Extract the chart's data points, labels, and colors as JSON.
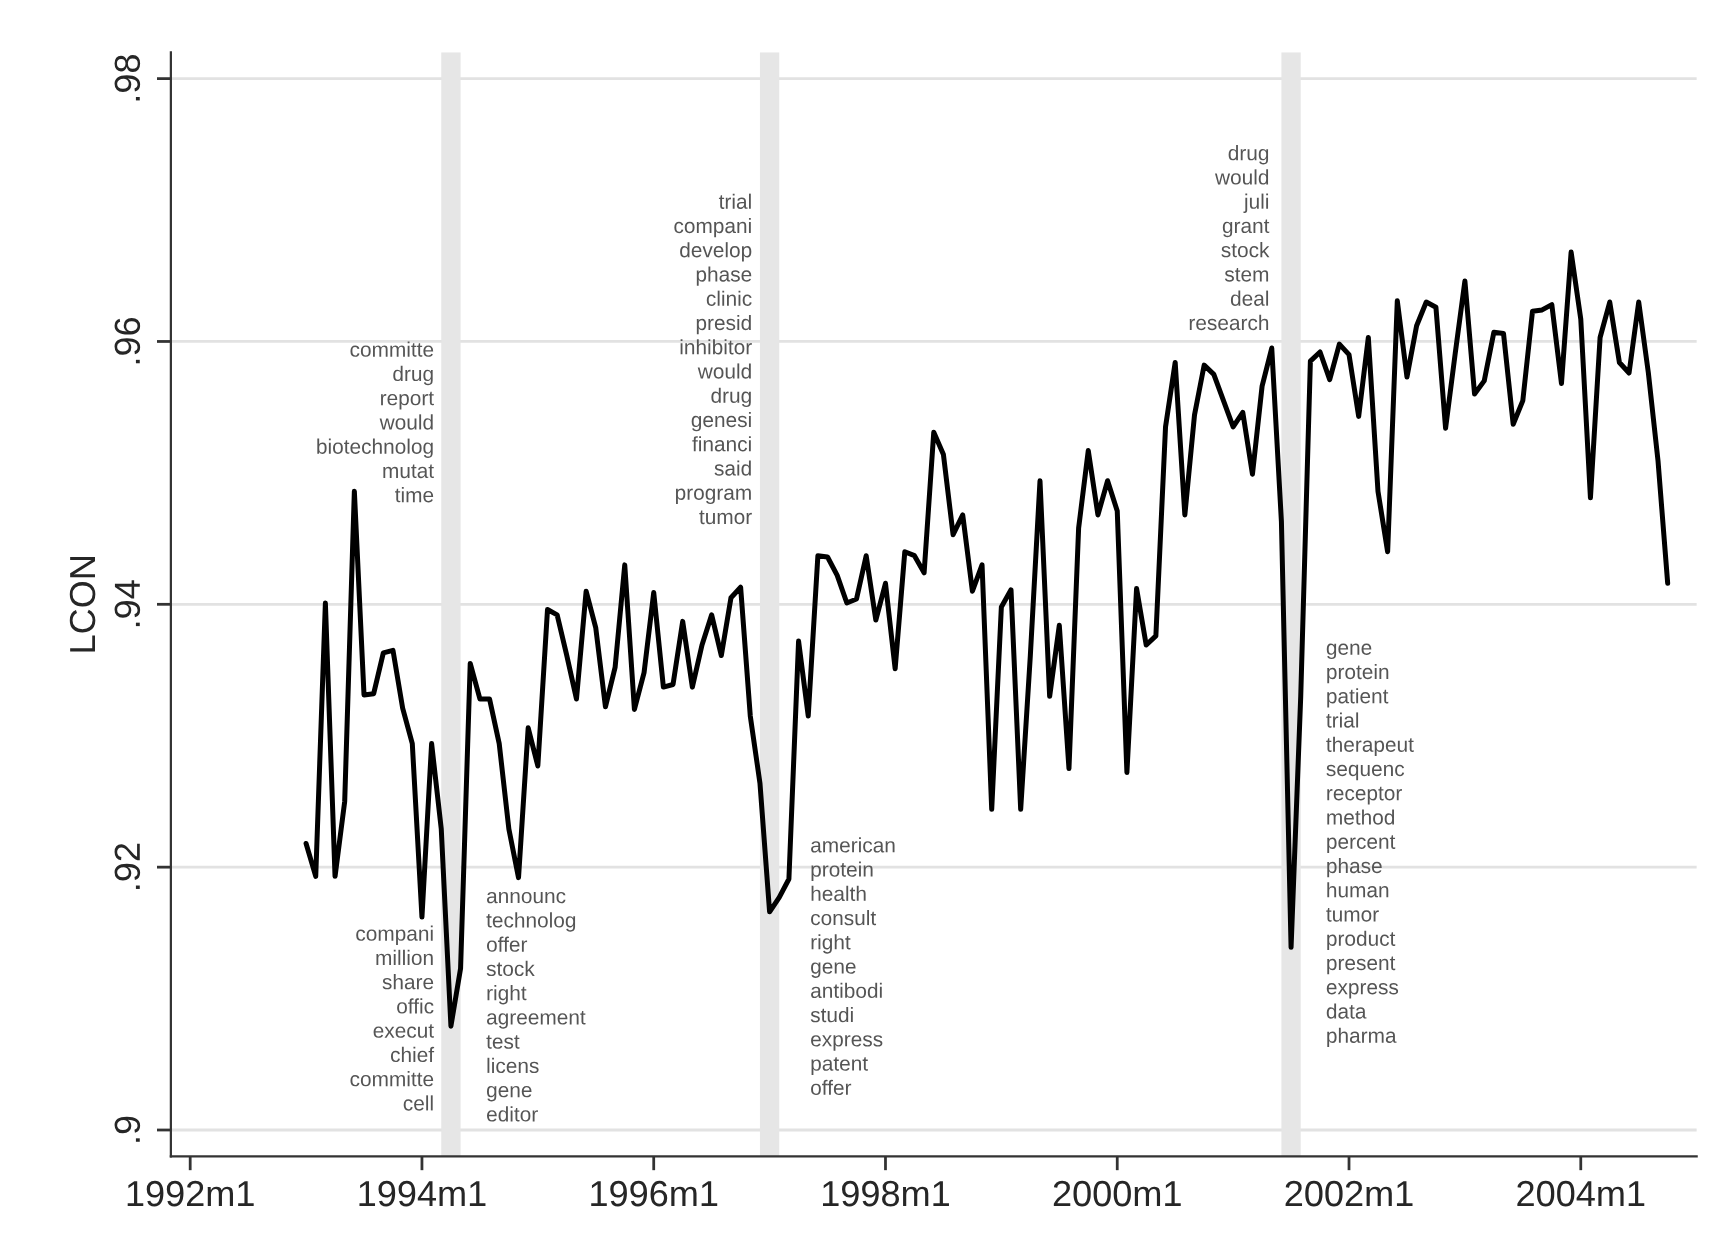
{
  "chart_data": {
    "type": "line",
    "ylabel": "LCON",
    "x": [
      "1993-01",
      "1993-02",
      "1993-03",
      "1993-04",
      "1993-05",
      "1993-06",
      "1993-07",
      "1993-08",
      "1993-09",
      "1993-10",
      "1993-11",
      "1993-12",
      "1994-01",
      "1994-02",
      "1994-03",
      "1994-04",
      "1994-05",
      "1994-06",
      "1994-07",
      "1994-08",
      "1994-09",
      "1994-10",
      "1994-11",
      "1994-12",
      "1995-01",
      "1995-02",
      "1995-03",
      "1995-04",
      "1995-05",
      "1995-06",
      "1995-07",
      "1995-08",
      "1995-09",
      "1995-10",
      "1995-11",
      "1995-12",
      "1996-01",
      "1996-02",
      "1996-03",
      "1996-04",
      "1996-05",
      "1996-06",
      "1996-07",
      "1996-08",
      "1996-09",
      "1996-10",
      "1996-11",
      "1996-12",
      "1997-01",
      "1997-02",
      "1997-03",
      "1997-04",
      "1997-05",
      "1997-06",
      "1997-07",
      "1997-08",
      "1997-09",
      "1997-10",
      "1997-11",
      "1997-12",
      "1998-01",
      "1998-02",
      "1998-03",
      "1998-04",
      "1998-05",
      "1998-06",
      "1998-07",
      "1998-08",
      "1998-09",
      "1998-10",
      "1998-11",
      "1998-12",
      "1999-01",
      "1999-02",
      "1999-03",
      "1999-04",
      "1999-05",
      "1999-06",
      "1999-07",
      "1999-08",
      "1999-09",
      "1999-10",
      "1999-11",
      "1999-12",
      "2000-01",
      "2000-02",
      "2000-03",
      "2000-04",
      "2000-05",
      "2000-06",
      "2000-07",
      "2000-08",
      "2000-09",
      "2000-10",
      "2000-11",
      "2000-12",
      "2001-01",
      "2001-02",
      "2001-03",
      "2001-04",
      "2001-05",
      "2001-06",
      "2001-07",
      "2001-08",
      "2001-09",
      "2001-10",
      "2001-11",
      "2001-12",
      "2002-01",
      "2002-02",
      "2002-03",
      "2002-04",
      "2002-05",
      "2002-06",
      "2002-07",
      "2002-08",
      "2002-09",
      "2002-10",
      "2002-11",
      "2002-12",
      "2003-01",
      "2003-02",
      "2003-03",
      "2003-04",
      "2003-05",
      "2003-06",
      "2003-07",
      "2003-08",
      "2003-09",
      "2003-10",
      "2003-11",
      "2003-12",
      "2004-01",
      "2004-02",
      "2004-03",
      "2004-04",
      "2004-05",
      "2004-06",
      "2004-07",
      "2004-08",
      "2004-09",
      "2004-10"
    ],
    "series": [
      {
        "color": "#000000",
        "values": [
          0.9218,
          0.9193,
          0.9401,
          0.9193,
          0.925,
          0.9486,
          0.9331,
          0.9332,
          0.9363,
          0.9365,
          0.9321,
          0.9294,
          0.9162,
          0.9294,
          0.9229,
          0.9079,
          0.9123,
          0.9355,
          0.9328,
          0.9328,
          0.9294,
          0.9229,
          0.9192,
          0.9306,
          0.9277,
          0.9396,
          0.9392,
          0.9361,
          0.9328,
          0.941,
          0.9382,
          0.9322,
          0.9352,
          0.943,
          0.932,
          0.9348,
          0.9409,
          0.9337,
          0.9339,
          0.9387,
          0.9337,
          0.9369,
          0.9392,
          0.9361,
          0.9405,
          0.9413,
          0.9315,
          0.9264,
          0.9166,
          0.9177,
          0.9191,
          0.9372,
          0.9315,
          0.9437,
          0.9436,
          0.9422,
          0.9401,
          0.9404,
          0.9437,
          0.9388,
          0.9416,
          0.9351,
          0.944,
          0.9437,
          0.9424,
          0.9531,
          0.9514,
          0.9453,
          0.9468,
          0.941,
          0.943,
          0.9244,
          0.9398,
          0.9411,
          0.9244,
          0.9361,
          0.9494,
          0.933,
          0.9384,
          0.9275,
          0.9458,
          0.9517,
          0.9468,
          0.9494,
          0.9471,
          0.9272,
          0.9412,
          0.9369,
          0.9376,
          0.9535,
          0.9584,
          0.9468,
          0.9544,
          0.9582,
          0.9575,
          0.9555,
          0.9535,
          0.9546,
          0.9499,
          0.9566,
          0.9595,
          0.9463,
          0.9139,
          0.933,
          0.9585,
          0.9592,
          0.9571,
          0.9598,
          0.959,
          0.9543,
          0.9603,
          0.9486,
          0.944,
          0.9631,
          0.9573,
          0.9612,
          0.963,
          0.9626,
          0.9534,
          0.9591,
          0.9646,
          0.956,
          0.957,
          0.9607,
          0.9606,
          0.9537,
          0.9555,
          0.9623,
          0.9624,
          0.9628,
          0.9568,
          0.9668,
          0.9617,
          0.9481,
          0.9603,
          0.963,
          0.9584,
          0.9576,
          0.963,
          0.9576,
          0.9509,
          0.9416
        ]
      }
    ],
    "xlim": [
      "1991-11",
      "2005-01"
    ],
    "xticks": [
      {
        "value": "1992-01",
        "label": "1992m1"
      },
      {
        "value": "1994-01",
        "label": "1994m1"
      },
      {
        "value": "1996-01",
        "label": "1996m1"
      },
      {
        "value": "1998-01",
        "label": "1998m1"
      },
      {
        "value": "2000-01",
        "label": "2000m1"
      },
      {
        "value": "2002-01",
        "label": "2002m1"
      },
      {
        "value": "2004-01",
        "label": "2004m1"
      }
    ],
    "ylim": [
      0.898,
      0.982
    ],
    "yticks": [
      {
        "value": 0.9,
        "label": ".9"
      },
      {
        "value": 0.92,
        "label": ".92"
      },
      {
        "value": 0.94,
        "label": ".94"
      },
      {
        "value": 0.96,
        "label": ".96"
      },
      {
        "value": 0.98,
        "label": ".98"
      }
    ],
    "grid": "y",
    "marker": "none",
    "line_style": "solid",
    "bands": [
      {
        "axis": "x",
        "from": "1994-03",
        "to": "1994-05",
        "color": "#e6e6e6"
      },
      {
        "axis": "x",
        "from": "1996-12",
        "to": "1997-02",
        "color": "#e6e6e6"
      },
      {
        "axis": "x",
        "from": "2001-06",
        "to": "2001-08",
        "color": "#e6e6e6"
      }
    ],
    "annotations": [
      "committe\ndrug\nreport\nwould\nbiotechnolog\nmutat\ntime",
      "compani\nmillion\nshare\noffic\nexecut\nchief\ncommitte\ncell",
      "announc\ntechnolog\noffer\nstock\nright\nagreement\ntest\nlicens\ngene\neditor",
      "trial\ncompani\ndevelop\nphase\nclinic\npresid\ninhibitor\nwould\ndrug\ngenesi\nfinanci\nsaid\nprogram\ntumor",
      "american\nprotein\nhealth\nconsult\nright\ngene\nantibodi\nstudi\nexpress\npatent\noffer",
      "drug\nwould\njuli\ngrant\nstock\nstem\ndeal\nresearch",
      "gene\nprotein\npatient\ntrial\ntherapeut\nsequenc\nreceptor\nmethod\npercent\nphase\nhuman\ntumor\nproduct\npresent\nexpress\ndata\npharma"
    ]
  }
}
